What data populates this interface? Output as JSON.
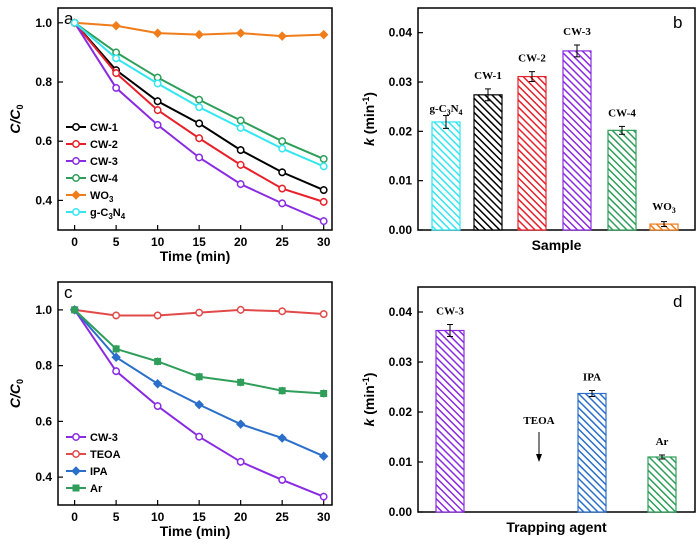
{
  "chart_data": [
    {
      "panel": "a",
      "type": "line",
      "xlabel": "Time (min)",
      "ylabel": "C/C0",
      "x": [
        0,
        5,
        10,
        15,
        20,
        25,
        30
      ],
      "xlim": [
        -2,
        31
      ],
      "ylim": [
        0.3,
        1.05
      ],
      "xticks": [
        0,
        5,
        10,
        15,
        20,
        25,
        30
      ],
      "yticks": [
        0.4,
        0.6,
        0.8,
        1.0
      ],
      "legend_position": "bottom-left",
      "series": [
        {
          "name": "CW-1",
          "color": "#000000",
          "values": [
            1.0,
            0.84,
            0.735,
            0.66,
            0.57,
            0.495,
            0.435
          ]
        },
        {
          "name": "CW-2",
          "color": "#e8202a",
          "values": [
            1.0,
            0.83,
            0.705,
            0.61,
            0.52,
            0.44,
            0.395
          ]
        },
        {
          "name": "CW-3",
          "color": "#8a2be2",
          "values": [
            1.0,
            0.78,
            0.655,
            0.545,
            0.455,
            0.39,
            0.33
          ]
        },
        {
          "name": "CW-4",
          "color": "#2e9e5a",
          "values": [
            1.0,
            0.9,
            0.815,
            0.74,
            0.67,
            0.6,
            0.54
          ]
        },
        {
          "name": "WO3",
          "color": "#f07d1a",
          "values": [
            1.0,
            0.99,
            0.965,
            0.96,
            0.965,
            0.955,
            0.96
          ]
        },
        {
          "name": "g-C3N4",
          "color": "#33e6f0",
          "values": [
            1.0,
            0.88,
            0.795,
            0.715,
            0.645,
            0.575,
            0.515
          ]
        }
      ]
    },
    {
      "panel": "b",
      "type": "bar",
      "xlabel": "Sample",
      "ylabel": "k (min-1)",
      "ylim": [
        0,
        0.045
      ],
      "yticks": [
        0.0,
        0.01,
        0.02,
        0.03,
        0.04
      ],
      "ytick_labels": [
        "0.00",
        "0.01",
        "0.02",
        "0.03",
        "0.04"
      ],
      "categories": [
        "g-C3N4",
        "CW-1",
        "CW-2",
        "CW-3",
        "CW-4",
        "WO3"
      ],
      "values": [
        0.0219,
        0.0274,
        0.0311,
        0.0363,
        0.0202,
        0.0012
      ],
      "errors": [
        0.0013,
        0.0012,
        0.001,
        0.0012,
        0.0008,
        0.0005
      ],
      "colors": [
        "#33e6f0",
        "#000000",
        "#e8202a",
        "#8a2be2",
        "#2e9e5a",
        "#f07d1a"
      ]
    },
    {
      "panel": "c",
      "type": "line",
      "xlabel": "Time (min)",
      "ylabel": "C/C0",
      "x": [
        0,
        5,
        10,
        15,
        20,
        25,
        30
      ],
      "xlim": [
        -2,
        31
      ],
      "ylim": [
        0.3,
        1.1
      ],
      "xticks": [
        0,
        5,
        10,
        15,
        20,
        25,
        30
      ],
      "yticks": [
        0.4,
        0.6,
        0.8,
        1.0
      ],
      "legend_position": "bottom-left",
      "series": [
        {
          "name": "CW-3",
          "color": "#8a2be2",
          "values": [
            1.0,
            0.78,
            0.655,
            0.545,
            0.455,
            0.39,
            0.33
          ]
        },
        {
          "name": "TEOA",
          "color": "#e24a4a",
          "values": [
            1.0,
            0.98,
            0.98,
            0.99,
            1.0,
            0.995,
            0.985
          ]
        },
        {
          "name": "IPA",
          "color": "#2a6fc9",
          "values": [
            1.0,
            0.83,
            0.735,
            0.66,
            0.59,
            0.54,
            0.475
          ]
        },
        {
          "name": "Ar",
          "color": "#2e9e5a",
          "values": [
            1.0,
            0.86,
            0.815,
            0.76,
            0.74,
            0.71,
            0.7
          ]
        }
      ]
    },
    {
      "panel": "d",
      "type": "bar",
      "xlabel": "Trapping agent",
      "ylabel": "k (min-1)",
      "ylim": [
        0,
        0.045
      ],
      "yticks": [
        0.0,
        0.01,
        0.02,
        0.03,
        0.04
      ],
      "ytick_labels": [
        "0.00",
        "0.01",
        "0.02",
        "0.03",
        "0.04"
      ],
      "categories": [
        "CW-3",
        "TEOA",
        "IPA",
        "Ar"
      ],
      "values": [
        0.0363,
        0.0,
        0.0237,
        0.011
      ],
      "errors": [
        0.0012,
        0.0,
        0.0006,
        0.0004
      ],
      "colors": [
        "#8a2be2",
        "#ffffff",
        "#2a6fc9",
        "#2e9e5a"
      ],
      "arrow_annotation": "TEOA"
    }
  ]
}
